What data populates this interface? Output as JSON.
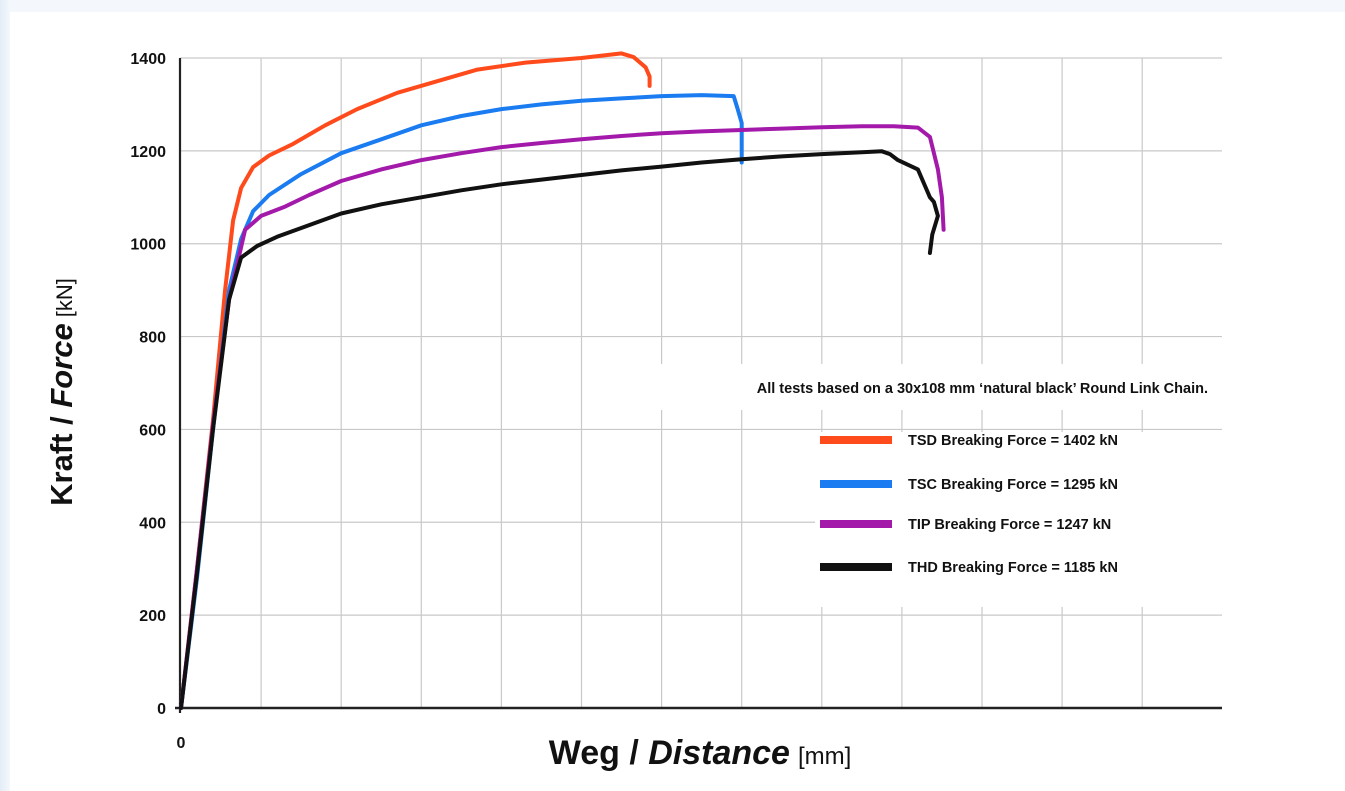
{
  "chart_data": {
    "type": "line",
    "ylabel": {
      "main": "Kraft / ",
      "italic": "Force",
      "unit": "[kN]"
    },
    "xlabel": {
      "main": "Weg / ",
      "italic": "Distance",
      "unit": "[mm]"
    },
    "ylim": [
      0,
      1400
    ],
    "yticks": [
      0,
      200,
      400,
      600,
      800,
      1000,
      1200,
      1400
    ],
    "xticks_labeled": [
      "0"
    ],
    "x_grid_count": 13,
    "xlim": [
      0,
      13
    ],
    "grid": true,
    "annotation": "All tests based on a 30x108 mm ‘natural black’ Round Link Chain.",
    "legend_position": "right",
    "series": [
      {
        "name": "TSD Breaking Force = 1402 kN",
        "legend_label": "TSD Breaking Force = 1402 kN",
        "color": "#ff4a1c",
        "x": [
          0,
          0.2,
          0.4,
          0.55,
          0.65,
          0.75,
          0.9,
          1.1,
          1.4,
          1.8,
          2.2,
          2.7,
          3.2,
          3.7,
          4.3,
          5.0,
          5.5,
          5.65,
          5.8,
          5.85,
          5.85
        ],
        "y": [
          0,
          300,
          620,
          900,
          1050,
          1120,
          1165,
          1190,
          1215,
          1255,
          1290,
          1325,
          1350,
          1375,
          1390,
          1400,
          1410,
          1402,
          1380,
          1360,
          1340
        ]
      },
      {
        "name": "TSC Breaking Force = 1295 kN",
        "legend_label": "TSC Breaking Force = 1295 kN",
        "color": "#1a7cf0",
        "x": [
          0,
          0.2,
          0.4,
          0.6,
          0.75,
          0.9,
          1.1,
          1.5,
          2.0,
          2.5,
          3.0,
          3.5,
          4.0,
          4.5,
          5.0,
          5.5,
          6.0,
          6.5,
          6.9,
          6.95,
          7.0,
          7.0,
          7.0
        ],
        "y": [
          0,
          280,
          600,
          900,
          1010,
          1070,
          1105,
          1150,
          1195,
          1225,
          1255,
          1275,
          1290,
          1300,
          1308,
          1313,
          1318,
          1320,
          1318,
          1290,
          1260,
          1220,
          1175
        ]
      },
      {
        "name": "TIP Breaking Force = 1247 kN",
        "legend_label": "TIP Breaking Force = 1247 kN",
        "color": "#a31aab",
        "x": [
          0,
          0.2,
          0.4,
          0.6,
          0.8,
          1.0,
          1.3,
          1.6,
          2.0,
          2.5,
          3.0,
          3.5,
          4.0,
          4.5,
          5.0,
          5.5,
          6.0,
          6.5,
          7.0,
          7.5,
          8.0,
          8.5,
          8.9,
          9.2,
          9.35,
          9.45,
          9.5,
          9.52
        ],
        "y": [
          0,
          300,
          610,
          880,
          1030,
          1060,
          1080,
          1105,
          1135,
          1160,
          1180,
          1195,
          1208,
          1217,
          1225,
          1232,
          1238,
          1242,
          1245,
          1248,
          1251,
          1253,
          1253,
          1250,
          1230,
          1160,
          1100,
          1030
        ]
      },
      {
        "name": "THD Breaking Force = 1185 kN",
        "legend_label": "THD Breaking Force = 1185 kN",
        "color": "#111111",
        "x": [
          0,
          0.2,
          0.4,
          0.6,
          0.75,
          0.95,
          1.2,
          1.6,
          2.0,
          2.5,
          3.0,
          3.5,
          4.0,
          4.5,
          5.0,
          5.5,
          6.0,
          6.5,
          7.0,
          7.5,
          8.0,
          8.5,
          8.75,
          8.85,
          8.95,
          9.2,
          9.3,
          9.35,
          9.4,
          9.45,
          9.38,
          9.35
        ],
        "y": [
          0,
          290,
          600,
          880,
          970,
          995,
          1015,
          1040,
          1065,
          1085,
          1100,
          1115,
          1128,
          1138,
          1148,
          1158,
          1166,
          1175,
          1182,
          1188,
          1193,
          1197,
          1199,
          1193,
          1180,
          1160,
          1120,
          1100,
          1090,
          1060,
          1020,
          980
        ]
      }
    ]
  }
}
